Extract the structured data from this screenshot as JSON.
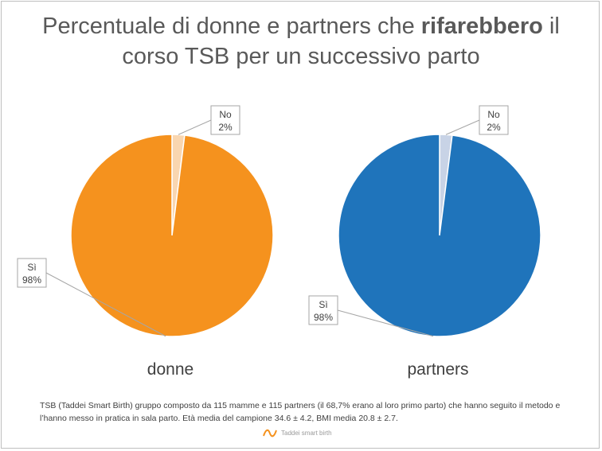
{
  "title": {
    "part1": "Percentuale di donne e partners che ",
    "bold": "rifarebbero",
    "part2": " il",
    "line2": "corso  TSB per un successivo parto"
  },
  "chart_data": [
    {
      "type": "pie",
      "caption": "donne",
      "slices": [
        {
          "label": "No",
          "value": 2,
          "display": "2%",
          "color": "#f9d6b0"
        },
        {
          "label": "Sì",
          "value": 98,
          "display": "98%",
          "color": "#f5921e"
        }
      ]
    },
    {
      "type": "pie",
      "caption": "partners",
      "slices": [
        {
          "label": "No",
          "value": 2,
          "display": "2%",
          "color": "#c8d3e6"
        },
        {
          "label": "Sì",
          "value": 98,
          "display": "98%",
          "color": "#1f74bb"
        }
      ]
    }
  ],
  "footnote": "TSB (Taddei Smart Birth) gruppo composto da 115 mamme e 115 partners (il 68,7% erano al loro primo parto) che hanno seguito il metodo e l’hanno messo in pratica in sala parto. Età media del campione 34.6 ± 4.2, BMI media 20.8 ± 2.7.",
  "logo_text": "Taddei smart birth",
  "colors": {
    "border": "#bfbfbf",
    "text": "#595959"
  }
}
